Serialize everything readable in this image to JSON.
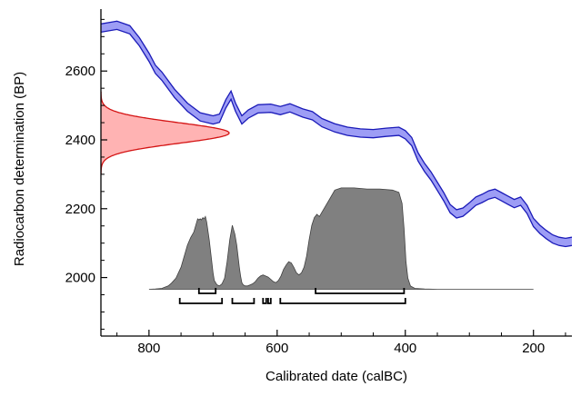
{
  "chart_data": {
    "type": "area",
    "xlabel": "Calibrated date (calBC)",
    "ylabel": "Radiocarbon determination (BP)",
    "xlim": [
      875,
      140
    ],
    "ylim": [
      1830,
      2780
    ],
    "x_ticks": [
      {
        "value": 800,
        "label": "800"
      },
      {
        "value": 600,
        "label": "600"
      },
      {
        "value": 400,
        "label": "400"
      },
      {
        "value": 200,
        "label": "200"
      }
    ],
    "y_ticks": [
      {
        "value": 2000,
        "label": "2000"
      },
      {
        "value": 2200,
        "label": "2200"
      },
      {
        "value": 2400,
        "label": "2400"
      },
      {
        "value": 2600,
        "label": "2600"
      }
    ],
    "grid": false,
    "colors": {
      "calibration_fill": "#9d9df5",
      "calibration_line": "#1a1ab8",
      "radiocarbon_fill": "#ffb3b3",
      "radiocarbon_line": "#d41414",
      "posterior_fill": "#808080",
      "posterior_line": "#404040",
      "range_line": "#000000"
    },
    "calibration_curve": {
      "x": [
        875,
        850,
        830,
        815,
        800,
        790,
        780,
        760,
        740,
        720,
        700,
        690,
        680,
        672,
        665,
        655,
        645,
        630,
        610,
        595,
        580,
        560,
        545,
        530,
        510,
        490,
        470,
        450,
        430,
        410,
        400,
        390,
        380,
        370,
        360,
        350,
        340,
        330,
        320,
        310,
        300,
        290,
        280,
        270,
        260,
        250,
        240,
        230,
        220,
        210,
        200,
        190,
        180,
        170,
        160,
        150,
        140
      ],
      "y": [
        2725,
        2733,
        2720,
        2685,
        2640,
        2605,
        2585,
        2535,
        2495,
        2467,
        2458,
        2463,
        2505,
        2530,
        2495,
        2458,
        2475,
        2490,
        2492,
        2485,
        2493,
        2478,
        2470,
        2450,
        2435,
        2425,
        2420,
        2418,
        2422,
        2425,
        2415,
        2395,
        2350,
        2320,
        2295,
        2265,
        2235,
        2200,
        2185,
        2190,
        2205,
        2222,
        2230,
        2240,
        2245,
        2235,
        2225,
        2215,
        2222,
        2198,
        2160,
        2140,
        2125,
        2112,
        2105,
        2102,
        2105
      ],
      "half_width": 12
    },
    "radiocarbon_determination": {
      "mean_bp": 2420,
      "sd_bp": 30
    },
    "posterior_distribution": {
      "x": [
        800,
        790,
        780,
        770,
        765,
        758,
        750,
        745,
        740,
        735,
        730,
        726,
        724,
        722,
        720,
        718,
        716,
        714,
        712,
        710,
        706,
        702,
        700,
        698,
        694,
        690,
        686,
        682,
        678,
        674,
        670,
        666,
        663,
        661,
        659,
        657,
        655,
        653,
        650,
        646,
        642,
        638,
        634,
        630,
        626,
        622,
        618,
        614,
        610,
        606,
        602,
        598,
        594,
        590,
        586,
        582,
        578,
        574,
        570,
        566,
        562,
        558,
        554,
        550,
        546,
        542,
        538,
        534,
        530,
        520,
        510,
        500,
        480,
        460,
        440,
        420,
        410,
        405,
        402,
        399,
        396,
        392,
        385,
        370,
        350,
        320,
        300,
        280,
        260,
        240,
        220,
        200
      ],
      "y": [
        0,
        0.002,
        0.008,
        0.03,
        0.055,
        0.1,
        0.2,
        0.3,
        0.4,
        0.47,
        0.52,
        0.6,
        0.64,
        0.63,
        0.64,
        0.63,
        0.65,
        0.64,
        0.66,
        0.61,
        0.45,
        0.25,
        0.15,
        0.08,
        0.04,
        0.03,
        0.05,
        0.1,
        0.25,
        0.45,
        0.58,
        0.5,
        0.4,
        0.3,
        0.2,
        0.12,
        0.06,
        0.04,
        0.03,
        0.03,
        0.04,
        0.05,
        0.07,
        0.1,
        0.12,
        0.13,
        0.12,
        0.11,
        0.09,
        0.07,
        0.06,
        0.08,
        0.12,
        0.18,
        0.22,
        0.25,
        0.24,
        0.2,
        0.15,
        0.13,
        0.15,
        0.2,
        0.3,
        0.45,
        0.58,
        0.65,
        0.68,
        0.66,
        0.7,
        0.8,
        0.9,
        0.92,
        0.92,
        0.91,
        0.91,
        0.9,
        0.88,
        0.78,
        0.55,
        0.25,
        0.1,
        0.03,
        0.008,
        0.002,
        0,
        0,
        0,
        0,
        0,
        0,
        0,
        0
      ],
      "baseline_bp": 1966,
      "max_height_bp": 320
    },
    "hpd_ranges": [
      {
        "level": "upper",
        "ranges": [
          [
            722,
            696
          ],
          [
            540,
            402
          ]
        ]
      },
      {
        "level": "lower",
        "ranges": [
          [
            752,
            686
          ],
          [
            670,
            636
          ],
          [
            622,
            617
          ],
          [
            614,
            610
          ],
          [
            595,
            400
          ]
        ]
      }
    ]
  }
}
